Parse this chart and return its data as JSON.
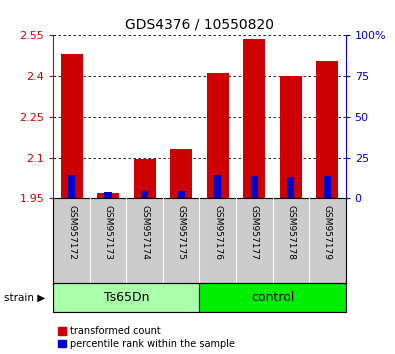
{
  "title": "GDS4376 / 10550820",
  "samples": [
    "GSM957172",
    "GSM957173",
    "GSM957174",
    "GSM957175",
    "GSM957176",
    "GSM957177",
    "GSM957178",
    "GSM957179"
  ],
  "group_labels": [
    "Ts65Dn",
    "control"
  ],
  "group1_color": "#AAFFAA",
  "group2_color": "#00EE00",
  "red_values": [
    2.48,
    1.968,
    2.093,
    2.13,
    2.41,
    2.535,
    2.4,
    2.455
  ],
  "blue_values": [
    2.035,
    1.972,
    1.978,
    1.975,
    2.035,
    2.033,
    2.03,
    2.033
  ],
  "baseline": 1.95,
  "ylim_left": [
    1.95,
    2.55
  ],
  "ylim_right": [
    0,
    100
  ],
  "yticks_left": [
    1.95,
    2.1,
    2.25,
    2.4,
    2.55
  ],
  "yticks_right": [
    0,
    25,
    50,
    75,
    100
  ],
  "left_color": "#CC0000",
  "right_color": "#0000CC",
  "bar_width": 0.6,
  "blue_bar_width": 0.2,
  "bg_labels": "#CCCCCC",
  "legend_red": "transformed count",
  "legend_blue": "percentile rank within the sample",
  "strain_label": "strain"
}
